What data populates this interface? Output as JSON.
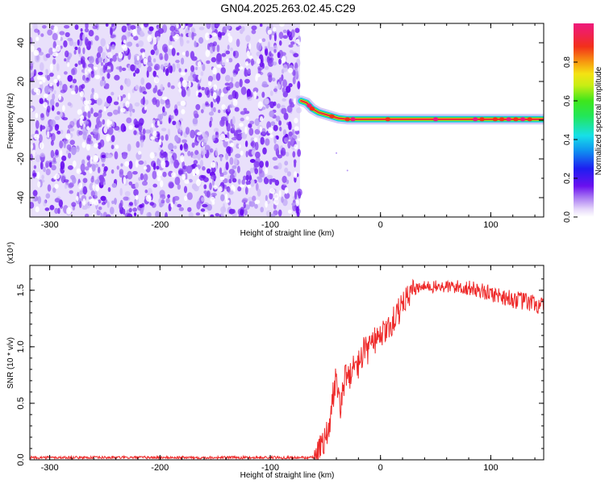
{
  "title": "GN04.2025.263.02.45.C29",
  "chart_data": [
    {
      "type": "heatmap",
      "xlabel": "Height of straight line (km)",
      "ylabel": "Frequency (Hz)",
      "xlim": [
        -318,
        148
      ],
      "ylim": [
        -50,
        50
      ],
      "xticks": [
        "-300",
        "-200",
        "-100",
        "0",
        "100"
      ],
      "yticks": [
        "-40",
        "-20",
        "0",
        "20",
        "40"
      ],
      "colorbar": {
        "label": "Normalized spectral amplitude",
        "range": [
          0,
          1
        ],
        "ticks": [
          "0.0",
          "0.2",
          "0.4",
          "0.6",
          "0.8"
        ],
        "colormap": "rainbow (white-violet-blue-cyan-green-yellow-red-magenta)"
      },
      "features": {
        "noise_region_x": [
          -318,
          -73
        ],
        "signal_trace": [
          {
            "x": -72,
            "y": 10
          },
          {
            "x": -67,
            "y": 9
          },
          {
            "x": -62,
            "y": 6
          },
          {
            "x": -56,
            "y": 4
          },
          {
            "x": -50,
            "y": 3
          },
          {
            "x": -44,
            "y": 2
          },
          {
            "x": -38,
            "y": 1
          },
          {
            "x": -30,
            "y": 0.5
          },
          {
            "x": -20,
            "y": 0.5
          },
          {
            "x": 0,
            "y": 0.5
          },
          {
            "x": 20,
            "y": 0.5
          },
          {
            "x": 50,
            "y": 0.5
          },
          {
            "x": 80,
            "y": 0.5
          },
          {
            "x": 110,
            "y": 0.5
          },
          {
            "x": 148,
            "y": 0.5
          }
        ]
      },
      "colors": {
        "noise_dark": "#6a0ff0",
        "noise_light": "#b596f5",
        "trace_core": "#e8323a",
        "trace_halo": "#20c8e8",
        "trace_mid": "#2ee62e"
      }
    },
    {
      "type": "line",
      "xlabel": "Height of straight line (km)",
      "ylabel": "SNR (10 * v/v)",
      "y_multiplier": "(x10⁴)",
      "xlim": [
        -318,
        148
      ],
      "ylim": [
        0,
        1.72
      ],
      "xticks": [
        "-300",
        "-200",
        "-100",
        "0",
        "100"
      ],
      "yticks": [
        "0.0",
        "0.5",
        "1.0",
        "1.5"
      ],
      "series_color": "#ee2a2a",
      "series": [
        {
          "x": [
            -318,
            -250,
            -150,
            -60,
            -55,
            -50,
            -47,
            -44,
            -40,
            -36,
            -32,
            -30,
            -25,
            -20,
            -15,
            -10,
            -5,
            0,
            5,
            10,
            15,
            20,
            25,
            30,
            35,
            40,
            50,
            60,
            70,
            80,
            90,
            100,
            110,
            120,
            130,
            140,
            148
          ],
          "y": [
            0.02,
            0.02,
            0.02,
            0.02,
            0.1,
            0.2,
            0.25,
            0.5,
            0.7,
            0.45,
            0.75,
            0.7,
            0.8,
            0.85,
            0.95,
            1.0,
            1.05,
            1.1,
            1.15,
            1.2,
            1.3,
            1.4,
            1.45,
            1.5,
            1.52,
            1.53,
            1.53,
            1.53,
            1.53,
            1.52,
            1.5,
            1.47,
            1.45,
            1.42,
            1.4,
            1.38,
            1.35
          ]
        }
      ]
    }
  ]
}
